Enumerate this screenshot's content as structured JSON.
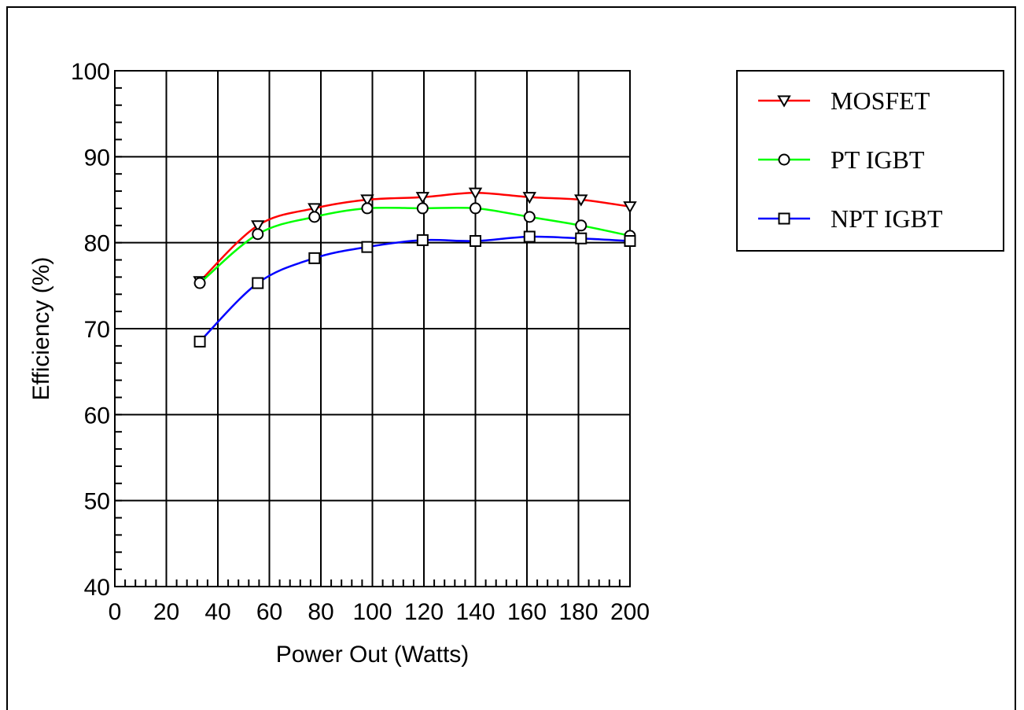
{
  "chart_data": {
    "type": "line",
    "title": "",
    "xlabel": "Power Out (Watts)",
    "ylabel": "Efficiency (%)",
    "xlim": [
      0,
      200
    ],
    "ylim": [
      40,
      100
    ],
    "xticks": [
      0,
      20,
      40,
      60,
      80,
      100,
      120,
      140,
      160,
      180,
      200
    ],
    "yticks": [
      40,
      50,
      60,
      70,
      80,
      90,
      100
    ],
    "grid": true,
    "legend_position": "top-right",
    "series": [
      {
        "name": "MOSFET",
        "color": "#ff0000",
        "marker": "triangle-down",
        "x": [
          33,
          55.5,
          77.5,
          98,
          119.5,
          140,
          161,
          181,
          200
        ],
        "y": [
          75.5,
          82,
          84,
          85,
          85.3,
          85.8,
          85.3,
          85,
          84.2
        ]
      },
      {
        "name": "PT IGBT",
        "color": "#00ff00",
        "marker": "circle",
        "x": [
          33,
          55.5,
          77.5,
          98,
          119.5,
          140,
          161,
          181,
          200
        ],
        "y": [
          75.3,
          81,
          83,
          84,
          84,
          84,
          83,
          82,
          80.8
        ]
      },
      {
        "name": "NPT IGBT",
        "color": "#0000ff",
        "marker": "square",
        "x": [
          33,
          55.5,
          77.5,
          98,
          119.5,
          140,
          161,
          181,
          200
        ],
        "y": [
          68.5,
          75.3,
          78.2,
          79.5,
          80.3,
          80.2,
          80.7,
          80.5,
          80.2
        ]
      }
    ]
  }
}
